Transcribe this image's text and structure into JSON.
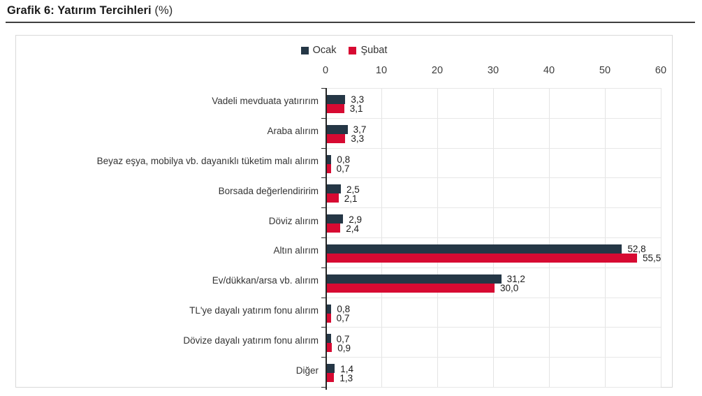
{
  "page": {
    "title_bold": "Grafik 6: Yatırım Tercihleri",
    "title_suffix": "(%)"
  },
  "colors": {
    "series_ocak": "#253746",
    "series_subat": "#d70a32",
    "axis_line": "#262626",
    "gridline": "#e5e5e5",
    "frame_border": "#d9d9d9",
    "text": "#333333"
  },
  "chart_data": {
    "type": "bar",
    "orientation": "horizontal",
    "title": "Grafik 6: Yatırım Tercihleri (%)",
    "value_unit": "%",
    "decimal_separator": ",",
    "legend_position": "top-center",
    "axis_position": "top",
    "xlim": [
      0,
      60
    ],
    "x_ticks": [
      0,
      10,
      20,
      30,
      40,
      50,
      60
    ],
    "grid": true,
    "categories": [
      "Vadeli mevduata yatırırım",
      "Araba alırım",
      "Beyaz eşya, mobilya vb. dayanıklı tüketim malı alırım",
      "Borsada değerlendiririm",
      "Döviz alırım",
      "Altın alırım",
      "Ev/dükkan/arsa vb. alırım",
      "TL'ye dayalı yatırım fonu alırım",
      "Dövize dayalı yatırım fonu alırım",
      "Diğer"
    ],
    "series": [
      {
        "name": "Ocak",
        "color": "#253746",
        "values": [
          3.3,
          3.7,
          0.8,
          2.5,
          2.9,
          52.8,
          31.2,
          0.8,
          0.7,
          1.4
        ],
        "labels": [
          "3,3",
          "3,7",
          "0,8",
          "2,5",
          "2,9",
          "52,8",
          "31,2",
          "0,8",
          "0,7",
          "1,4"
        ]
      },
      {
        "name": "Şubat",
        "color": "#d70a32",
        "values": [
          3.1,
          3.3,
          0.7,
          2.1,
          2.4,
          55.5,
          30.0,
          0.7,
          0.9,
          1.3
        ],
        "labels": [
          "3,1",
          "3,3",
          "0,7",
          "2,1",
          "2,4",
          "55,5",
          "30,0",
          "0,7",
          "0,9",
          "1,3"
        ]
      }
    ]
  }
}
